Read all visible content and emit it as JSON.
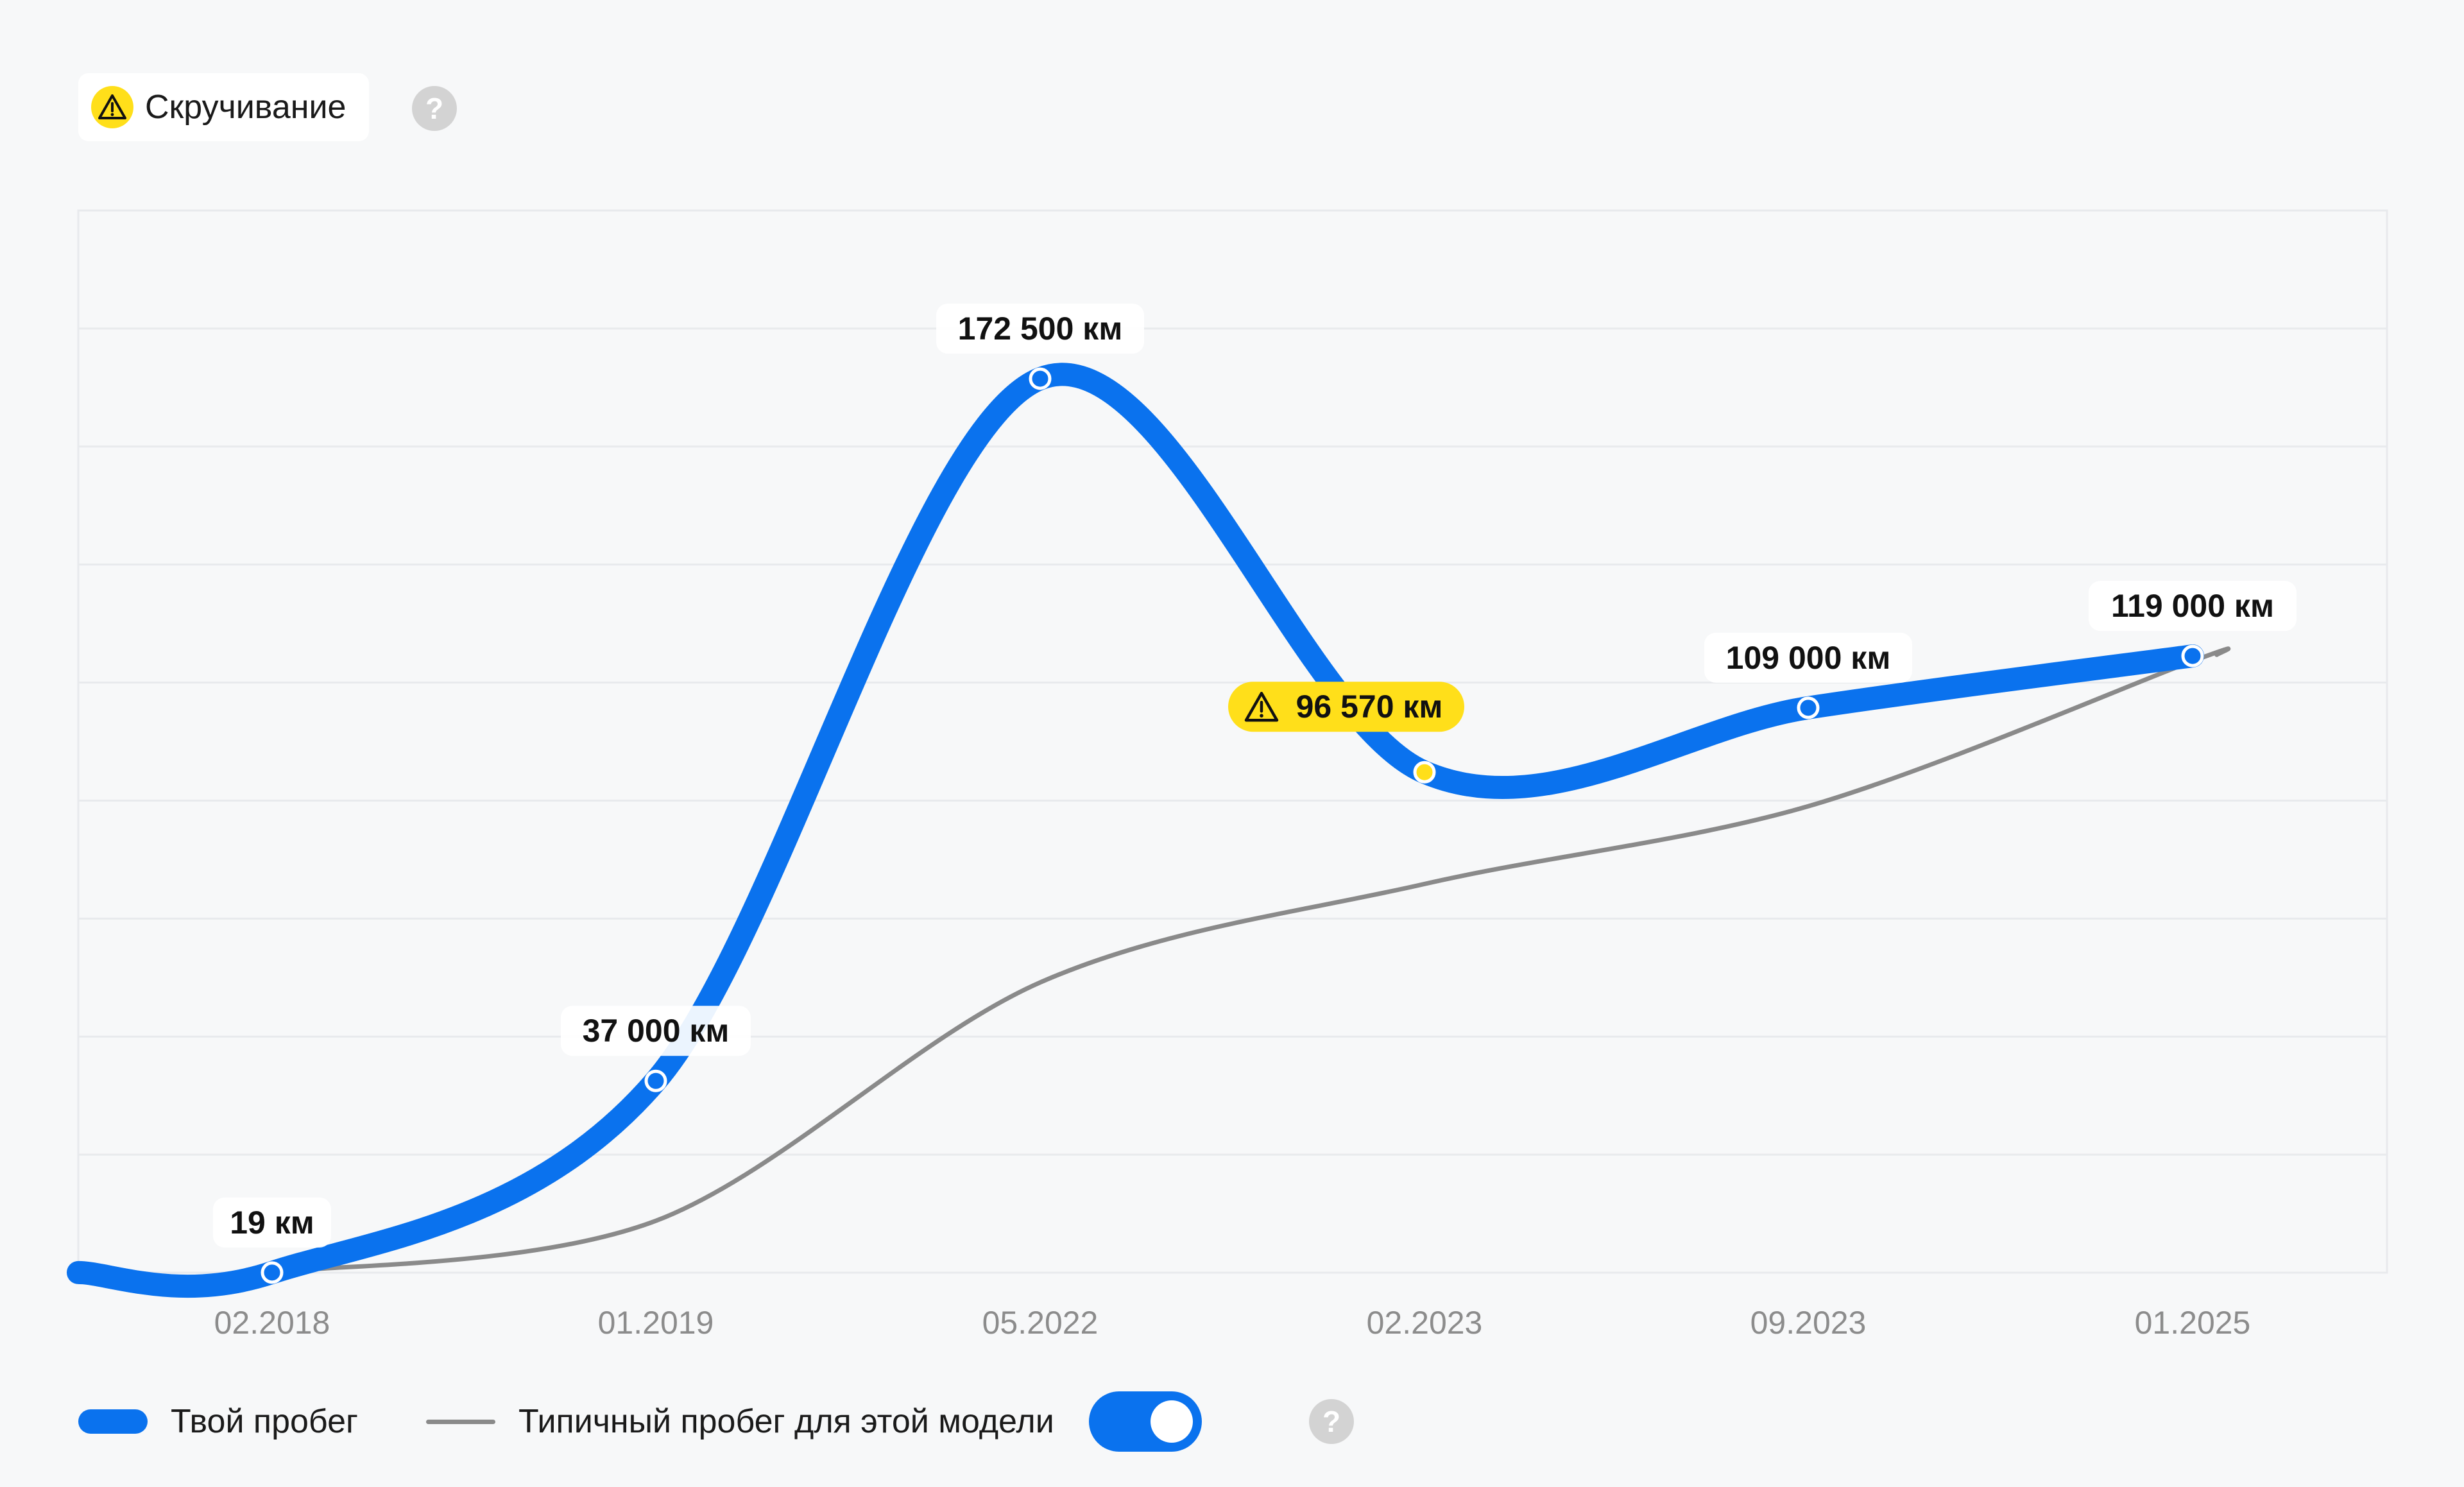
{
  "badge": {
    "label": "Скручивание",
    "icon": "warning-icon",
    "color": "#ffdf1a"
  },
  "legend": {
    "your_mileage": "Твой пробег",
    "typical_mileage": "Типичный пробег для этой модели",
    "toggle_on": true
  },
  "colors": {
    "your_line": "#0a72ee",
    "typical_line": "#8a8a8a",
    "warning": "#ffdf1a",
    "grid": "#e8eaed",
    "background": "#f7f8f9"
  },
  "chart_data": {
    "type": "line",
    "title": "",
    "xlabel": "",
    "ylabel": "",
    "categories": [
      "02.2018",
      "01.2019",
      "05.2022",
      "02.2023",
      "09.2023",
      "01.2025"
    ],
    "ylim": [
      0,
      200000
    ],
    "grid": true,
    "legend_placement": "bottom-left",
    "series": [
      {
        "name": "Твой пробег",
        "values": [
          19,
          37000,
          172500,
          96570,
          109000,
          119000
        ],
        "labels": [
          "19 км",
          "37 000 км",
          "172 500 км",
          "96 570 км",
          "109 000 км",
          "119 000 км"
        ],
        "warning_index": 3
      },
      {
        "name": "Типичный пробег для этой модели",
        "values": [
          19,
          10000,
          56000,
          75000,
          90000,
          118000
        ]
      }
    ]
  }
}
